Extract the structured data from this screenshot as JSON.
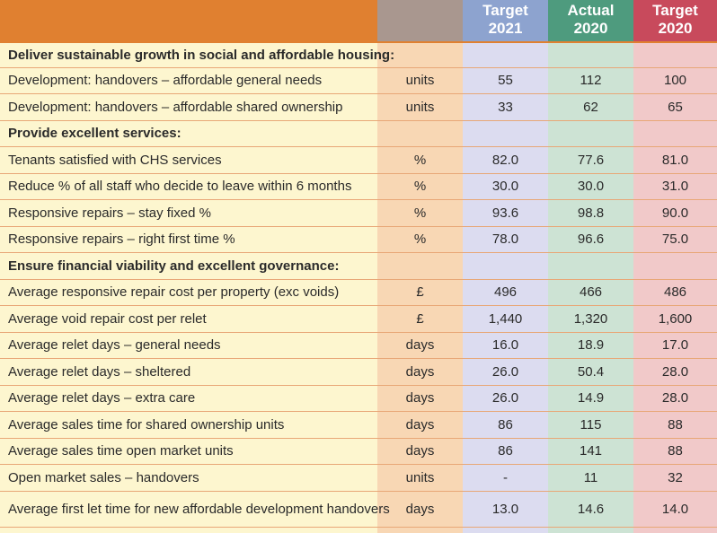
{
  "header": {
    "target_2021": [
      "Target",
      "2021"
    ],
    "actual_2020": [
      "Actual",
      "2020"
    ],
    "target_2020": [
      "Target",
      "2020"
    ]
  },
  "rows": [
    {
      "label": "Deliver sustainable growth in social and affordable housing:",
      "section": true,
      "unit": "",
      "t21": "",
      "a20": "",
      "t20": ""
    },
    {
      "label": "Development: handovers – affordable general needs",
      "section": false,
      "unit": "units",
      "t21": "55",
      "a20": "112",
      "t20": "100"
    },
    {
      "label": "Development: handovers – affordable shared ownership",
      "section": false,
      "unit": "units",
      "t21": "33",
      "a20": "62",
      "t20": "65"
    },
    {
      "label": "Provide excellent services:",
      "section": true,
      "unit": "",
      "t21": "",
      "a20": "",
      "t20": ""
    },
    {
      "label": "Tenants satisfied with CHS services",
      "section": false,
      "unit": "%",
      "t21": "82.0",
      "a20": "77.6",
      "t20": "81.0"
    },
    {
      "label": "Reduce % of all staff who decide to leave within 6 months",
      "section": false,
      "unit": "%",
      "t21": "30.0",
      "a20": "30.0",
      "t20": "31.0"
    },
    {
      "label": "Responsive repairs – stay fixed %",
      "section": false,
      "unit": "%",
      "t21": "93.6",
      "a20": "98.8",
      "t20": "90.0"
    },
    {
      "label": "Responsive repairs – right first time %",
      "section": false,
      "unit": "%",
      "t21": "78.0",
      "a20": "96.6",
      "t20": "75.0"
    },
    {
      "label": "Ensure financial viability and excellent governance:",
      "section": true,
      "unit": "",
      "t21": "",
      "a20": "",
      "t20": ""
    },
    {
      "label": "Average responsive repair cost per property (exc voids)",
      "section": false,
      "unit": "£",
      "t21": "496",
      "a20": "466",
      "t20": "486"
    },
    {
      "label": "Average void repair cost per relet",
      "section": false,
      "unit": "£",
      "t21": "1,440",
      "a20": "1,320",
      "t20": "1,600"
    },
    {
      "label": "Average relet days – general needs",
      "section": false,
      "unit": "days",
      "t21": "16.0",
      "a20": "18.9",
      "t20": "17.0"
    },
    {
      "label": "Average relet days – sheltered",
      "section": false,
      "unit": "days",
      "t21": "26.0",
      "a20": "50.4",
      "t20": "28.0"
    },
    {
      "label": "Average relet days – extra care",
      "section": false,
      "unit": "days",
      "t21": "26.0",
      "a20": "14.9",
      "t20": "28.0"
    },
    {
      "label": "Average sales time for shared ownership units",
      "section": false,
      "unit": "days",
      "t21": "86",
      "a20": "115",
      "t20": "88"
    },
    {
      "label": "Average sales time open market units",
      "section": false,
      "unit": "days",
      "t21": "86",
      "a20": "141",
      "t20": "88"
    },
    {
      "label": "Open market sales – handovers",
      "section": false,
      "unit": "units",
      "t21": "-",
      "a20": "11",
      "t20": "32"
    },
    {
      "label": "Average first let time for new affordable development handovers",
      "section": false,
      "unit": "days",
      "t21": "13.0",
      "a20": "14.6",
      "t20": "14.0"
    }
  ]
}
